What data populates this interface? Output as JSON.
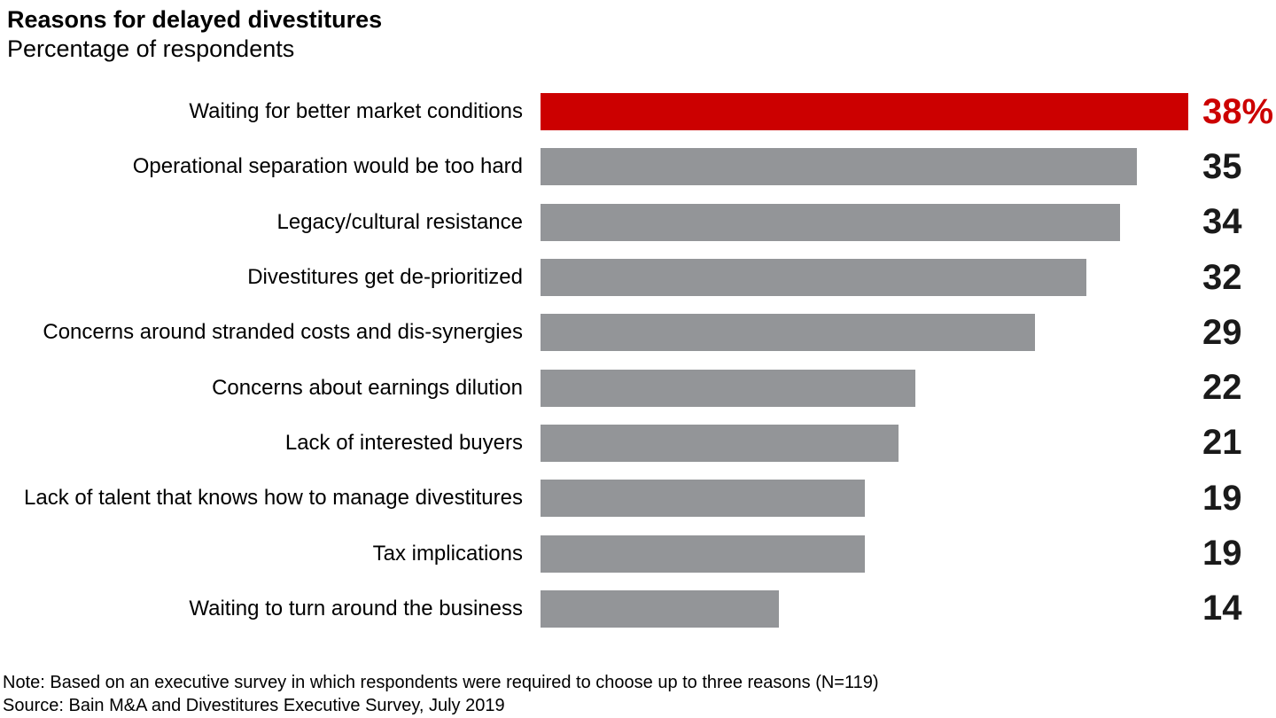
{
  "header": {
    "title": "Reasons for delayed divestitures",
    "subtitle": "Percentage of respondents"
  },
  "chart_data": {
    "type": "bar",
    "orientation": "horizontal",
    "title": "Reasons for delayed divestitures",
    "subtitle": "Percentage of respondents",
    "xlabel": "",
    "ylabel": "",
    "xlim": [
      0,
      38
    ],
    "grid": false,
    "legend": false,
    "categories": [
      "Waiting for better market conditions",
      "Operational separation would be too hard",
      "Legacy/cultural resistance",
      "Divestitures get de-prioritized",
      "Concerns around stranded costs and dis-synergies",
      "Concerns about earnings dilution",
      "Lack of interested buyers",
      "Lack of talent that knows how to manage divestitures",
      "Tax implications",
      "Waiting to turn around the business"
    ],
    "values": [
      38,
      35,
      34,
      32,
      29,
      22,
      21,
      19,
      19,
      14
    ],
    "value_labels": [
      "38%",
      "35",
      "34",
      "32",
      "29",
      "22",
      "21",
      "19",
      "19",
      "14"
    ],
    "highlight_index": 0,
    "colors": {
      "highlight_bar": "#cc0000",
      "highlight_value_text": "#cc0000",
      "default_bar": "#939598",
      "default_value_text": "#1a1a1a"
    }
  },
  "footer": {
    "note": "Note: Based on an executive survey in which respondents were required to choose up to three reasons (N=119)",
    "source": "Source: Bain M&A and Divestitures Executive Survey, July 2019"
  }
}
